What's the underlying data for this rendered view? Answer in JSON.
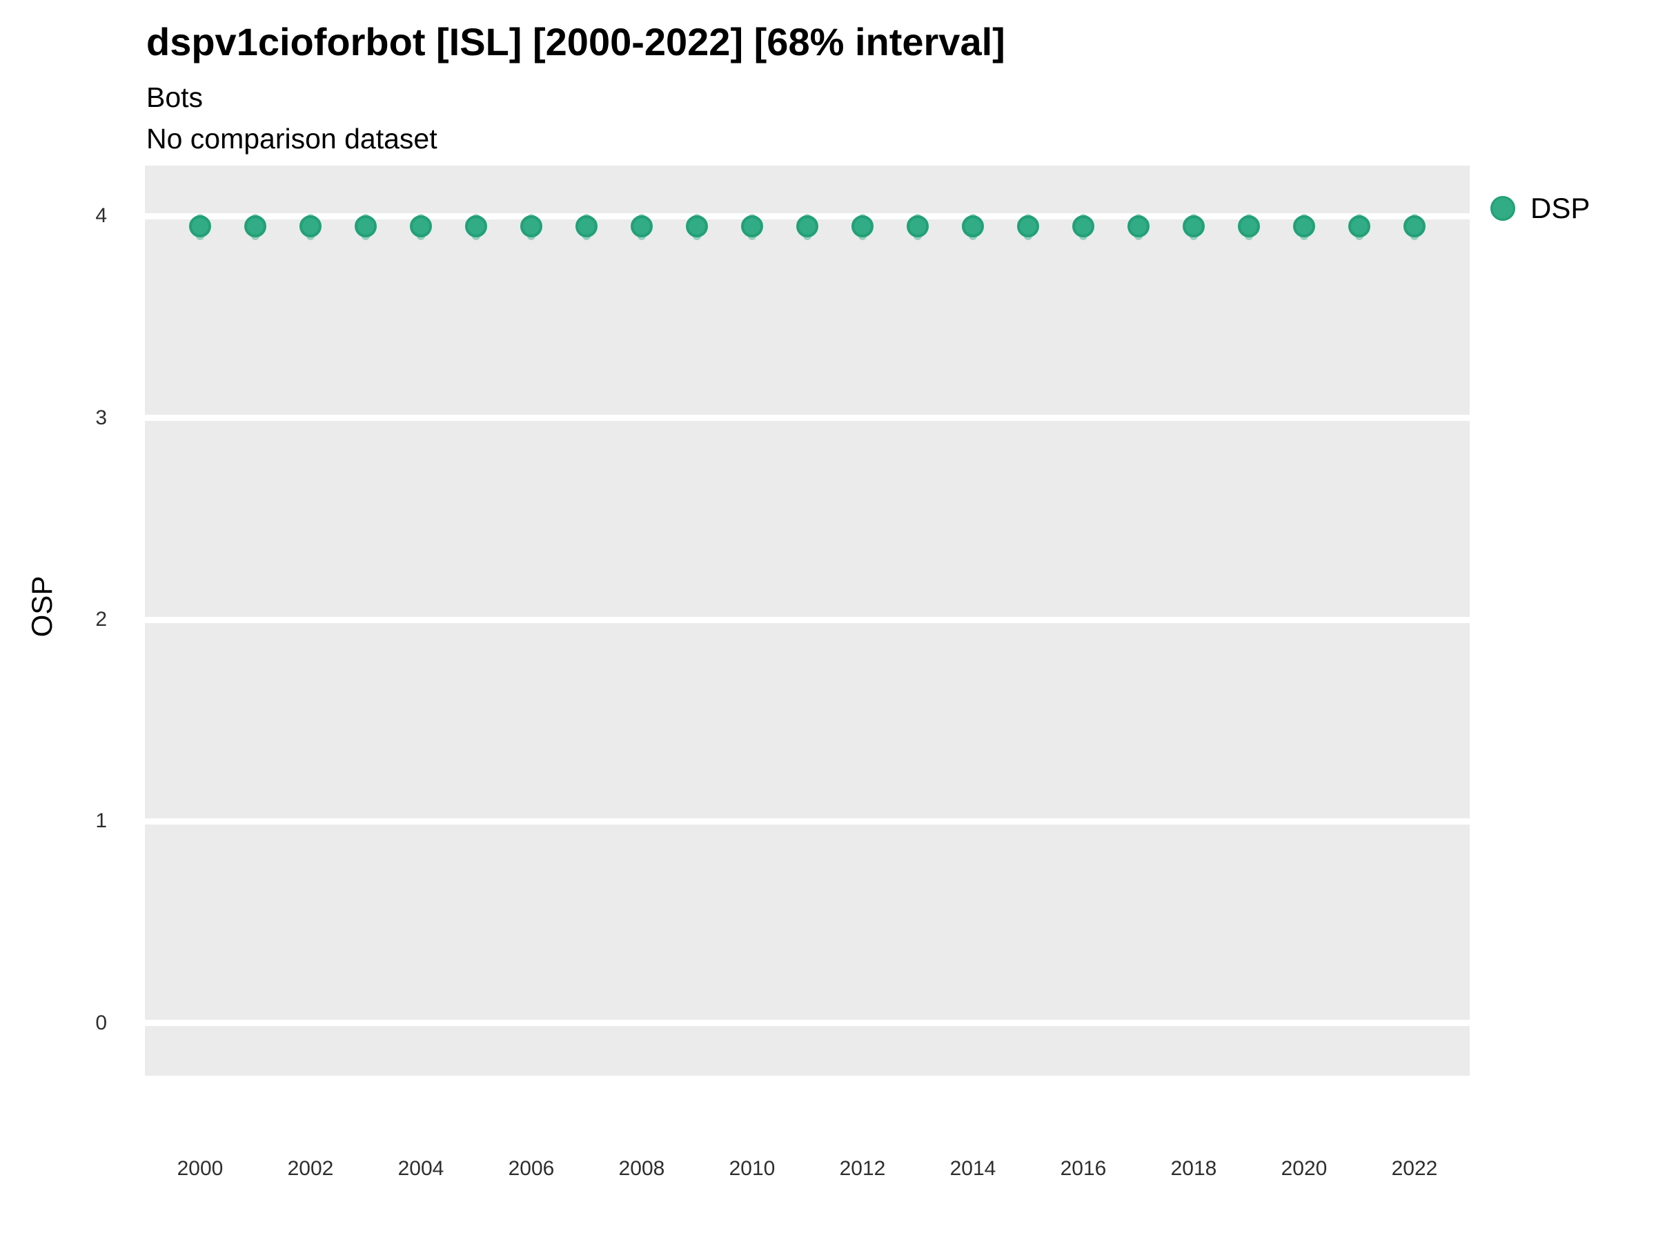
{
  "header": {
    "title": "dspv1cioforbot [ISL] [2000-2022] [68% interval]",
    "subtitle1": "Bots",
    "subtitle2": "No comparison dataset"
  },
  "legend": {
    "position": "right",
    "items": [
      {
        "label": "DSP",
        "color": "#31AC85",
        "ring_color": "#23A078"
      }
    ]
  },
  "colors": {
    "panel_background": "#EBEBEB",
    "gridline": "#FFFFFF",
    "point_fill": "#31AC85",
    "point_ring": "#23A078",
    "interval_fill": "rgba(49,172,133,0.45)",
    "tick_text": "#2e2e2e"
  },
  "chart_data": {
    "type": "scatter",
    "title": "dspv1cioforbot [ISL] [2000-2022] [68% interval]",
    "subtitle": [
      "Bots",
      "No comparison dataset"
    ],
    "xlabel": "",
    "ylabel": "OSP",
    "interval_note": "68% interval",
    "legend_position": "right",
    "grid": "major-horizontal-only",
    "xlim": [
      1999,
      2023
    ],
    "ylim": [
      -0.26,
      4.25
    ],
    "xticks": [
      2000,
      2002,
      2004,
      2006,
      2008,
      2010,
      2012,
      2014,
      2016,
      2018,
      2020,
      2022
    ],
    "yticks": [
      0,
      1,
      2,
      3,
      4
    ],
    "x": [
      2000,
      2001,
      2002,
      2003,
      2004,
      2005,
      2006,
      2007,
      2008,
      2009,
      2010,
      2011,
      2012,
      2013,
      2014,
      2015,
      2016,
      2017,
      2018,
      2019,
      2020,
      2021,
      2022
    ],
    "series": [
      {
        "name": "DSP",
        "values": [
          3.95,
          3.95,
          3.95,
          3.95,
          3.95,
          3.95,
          3.95,
          3.95,
          3.95,
          3.95,
          3.95,
          3.95,
          3.95,
          3.95,
          3.95,
          3.95,
          3.95,
          3.95,
          3.95,
          3.95,
          3.95,
          3.95,
          3.95
        ],
        "interval_low": [
          3.88,
          3.88,
          3.88,
          3.88,
          3.88,
          3.88,
          3.88,
          3.88,
          3.88,
          3.88,
          3.88,
          3.88,
          3.88,
          3.88,
          3.88,
          3.88,
          3.88,
          3.88,
          3.88,
          3.88,
          3.88,
          3.88,
          3.88
        ],
        "interval_high": [
          4.01,
          4.01,
          4.01,
          4.01,
          4.01,
          4.01,
          4.01,
          4.01,
          4.01,
          4.01,
          4.01,
          4.01,
          4.01,
          4.01,
          4.01,
          4.01,
          4.01,
          4.01,
          4.01,
          4.01,
          4.01,
          4.01,
          4.01
        ]
      }
    ]
  }
}
